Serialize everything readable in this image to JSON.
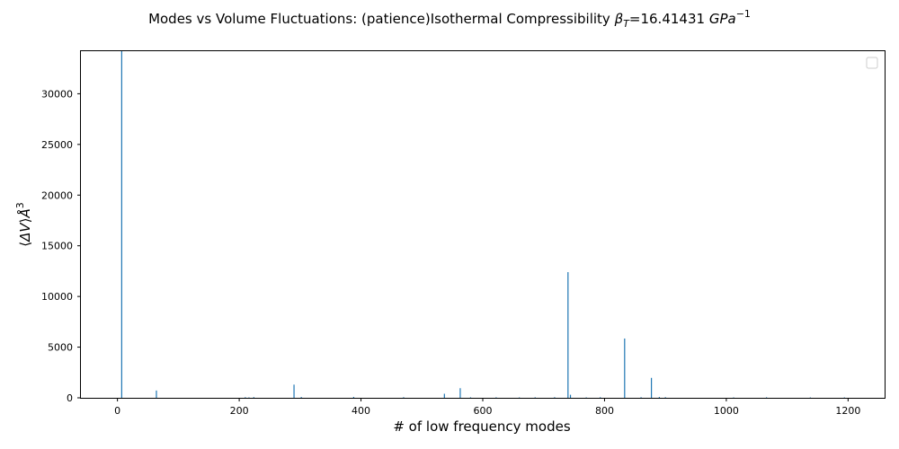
{
  "chart_data": {
    "type": "bar",
    "title": "Modes vs Volume Fluctuations:  (patience)Isothermal Compressibility",
    "title_symbol": "β",
    "title_symbol_sub": "T",
    "title_value": "=16.41431",
    "title_unit": "GPa",
    "title_unit_exp": "−1",
    "xlabel": "# of low frequency modes",
    "ylabel_parts": {
      "open": "⟨",
      "delta": "Δ",
      "v": "V",
      "close": "⟩",
      "unit": "Å",
      "exp": "3"
    },
    "xlim": [
      -60,
      1260
    ],
    "ylim": [
      0,
      34200
    ],
    "xticks": [
      0,
      200,
      400,
      600,
      800,
      1000,
      1200
    ],
    "yticks": [
      0,
      5000,
      10000,
      15000,
      20000,
      25000,
      30000
    ],
    "x": [
      7,
      64,
      210,
      216,
      224,
      290,
      302,
      388,
      470,
      537,
      563,
      580,
      622,
      660,
      686,
      718,
      740,
      744,
      770,
      793,
      833,
      860,
      877,
      890,
      900,
      1012,
      1066,
      1138,
      1194
    ],
    "values": [
      34200,
      720,
      60,
      40,
      70,
      1300,
      80,
      90,
      60,
      400,
      950,
      50,
      50,
      40,
      50,
      60,
      12400,
      300,
      40,
      60,
      5850,
      60,
      1970,
      80,
      60,
      40,
      50,
      40,
      40
    ],
    "legend_location": "upper right",
    "legend_entries": [],
    "grid": false
  }
}
